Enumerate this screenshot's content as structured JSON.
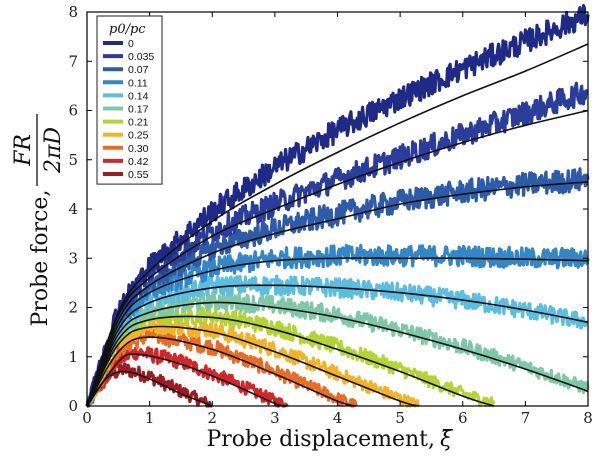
{
  "chart_data": {
    "type": "line",
    "xlabel": "Probe displacement,",
    "xlabel_symbol": "ξ̄",
    "ylabel": "Probe force,",
    "ylabel_numerator": "FR",
    "ylabel_denominator": "2πD",
    "xlim": [
      0,
      8
    ],
    "ylim": [
      0,
      8
    ],
    "x_ticks": [
      "0",
      "1",
      "2",
      "3",
      "4",
      "5",
      "6",
      "7",
      "8"
    ],
    "y_ticks": [
      "0",
      "1",
      "2",
      "3",
      "4",
      "5",
      "6",
      "7",
      "8"
    ],
    "grid": false,
    "legend_title": "p0/pc",
    "legend_placement": "top-left",
    "data_style": "noisy measurement traces with smooth black model fit curves overlaid",
    "fit_curve_color": "#111111",
    "series": [
      {
        "name": "0",
        "color": "#1f2a86",
        "x": [
          0,
          0.5,
          1,
          2,
          3,
          4,
          5,
          6,
          7,
          8
        ],
        "y": [
          0,
          2.0,
          2.85,
          3.95,
          4.85,
          5.6,
          6.25,
          6.85,
          7.4,
          7.95
        ],
        "fit_y": [
          0,
          1.9,
          2.75,
          3.75,
          4.5,
          5.15,
          5.75,
          6.3,
          6.8,
          7.35
        ]
      },
      {
        "name": "0.035",
        "color": "#2b3d9a",
        "x": [
          0,
          0.5,
          1,
          2,
          3,
          4,
          5,
          6,
          7,
          8
        ],
        "y": [
          0,
          1.9,
          2.7,
          3.55,
          4.1,
          4.6,
          5.05,
          5.5,
          5.95,
          6.4
        ],
        "fit_y": [
          0,
          1.85,
          2.6,
          3.45,
          4.0,
          4.5,
          4.95,
          5.35,
          5.7,
          6.0
        ]
      },
      {
        "name": "0.07",
        "color": "#2e5ba8",
        "x": [
          0,
          0.5,
          1,
          2,
          3,
          4,
          5,
          6,
          7,
          8
        ],
        "y": [
          0,
          1.8,
          2.5,
          3.2,
          3.6,
          3.9,
          4.15,
          4.35,
          4.5,
          4.6
        ],
        "fit_y": [
          0,
          1.75,
          2.45,
          3.1,
          3.5,
          3.8,
          4.1,
          4.3,
          4.45,
          4.55
        ]
      },
      {
        "name": "0.11",
        "color": "#3487c6",
        "x": [
          0,
          0.5,
          1,
          2,
          3,
          4,
          5,
          6,
          7,
          8
        ],
        "y": [
          0,
          1.7,
          2.35,
          2.8,
          3.0,
          3.05,
          3.05,
          3.05,
          3.0,
          3.0
        ],
        "fit_y": [
          0,
          1.65,
          2.3,
          2.75,
          2.95,
          3.0,
          3.0,
          3.0,
          2.98,
          2.95
        ]
      },
      {
        "name": "0.14",
        "color": "#5bbde0",
        "x": [
          0,
          0.5,
          1,
          2,
          3,
          4,
          5,
          6,
          7,
          8
        ],
        "y": [
          0,
          1.6,
          2.15,
          2.45,
          2.45,
          2.4,
          2.3,
          2.15,
          1.95,
          1.7
        ],
        "fit_y": [
          0,
          1.55,
          2.1,
          2.4,
          2.45,
          2.4,
          2.3,
          2.15,
          1.95,
          1.7
        ]
      },
      {
        "name": "0.17",
        "color": "#7ec8a7",
        "x": [
          0,
          0.5,
          1,
          2,
          3,
          4,
          5,
          6,
          7,
          8
        ],
        "y": [
          0,
          1.5,
          1.95,
          2.15,
          2.05,
          1.85,
          1.55,
          1.2,
          0.8,
          0.35
        ],
        "fit_y": [
          0,
          1.45,
          1.9,
          2.1,
          2.0,
          1.8,
          1.5,
          1.15,
          0.75,
          0.3
        ]
      },
      {
        "name": "0.21",
        "color": "#b5d433",
        "x": [
          0,
          0.5,
          1,
          2,
          3,
          4,
          5,
          6,
          6.5
        ],
        "y": [
          0,
          1.4,
          1.8,
          1.85,
          1.6,
          1.2,
          0.75,
          0.25,
          0.05
        ],
        "fit_y": [
          0,
          1.35,
          1.75,
          1.8,
          1.55,
          1.15,
          0.7,
          0.2,
          0.0
        ]
      },
      {
        "name": "0.25",
        "color": "#f2b324",
        "x": [
          0,
          0.5,
          1,
          2,
          3,
          4,
          5,
          5.3
        ],
        "y": [
          0,
          1.3,
          1.65,
          1.55,
          1.15,
          0.65,
          0.15,
          0.0
        ],
        "fit_y": [
          0,
          1.25,
          1.6,
          1.5,
          1.1,
          0.6,
          0.1,
          0.0
        ]
      },
      {
        "name": "0.30",
        "color": "#ea6b23",
        "x": [
          0,
          0.5,
          1,
          2,
          3,
          4,
          4.3
        ],
        "y": [
          0,
          1.15,
          1.45,
          1.2,
          0.7,
          0.15,
          0.0
        ],
        "fit_y": [
          0,
          1.1,
          1.4,
          1.15,
          0.65,
          0.1,
          0.0
        ]
      },
      {
        "name": "0.42",
        "color": "#d2262a",
        "x": [
          0,
          0.5,
          0.8,
          1.5,
          2.3,
          3.0,
          3.2
        ],
        "y": [
          0,
          0.95,
          1.1,
          0.9,
          0.5,
          0.1,
          0.0
        ],
        "fit_y": [
          0,
          0.9,
          1.05,
          0.85,
          0.45,
          0.05,
          0.0
        ]
      },
      {
        "name": "0.55",
        "color": "#9e1c22",
        "x": [
          0,
          0.3,
          0.6,
          1.0,
          1.5,
          2.0
        ],
        "y": [
          0,
          0.6,
          0.75,
          0.6,
          0.3,
          0.0
        ],
        "fit_y": [
          0,
          0.55,
          0.7,
          0.55,
          0.25,
          0.0
        ]
      }
    ]
  }
}
